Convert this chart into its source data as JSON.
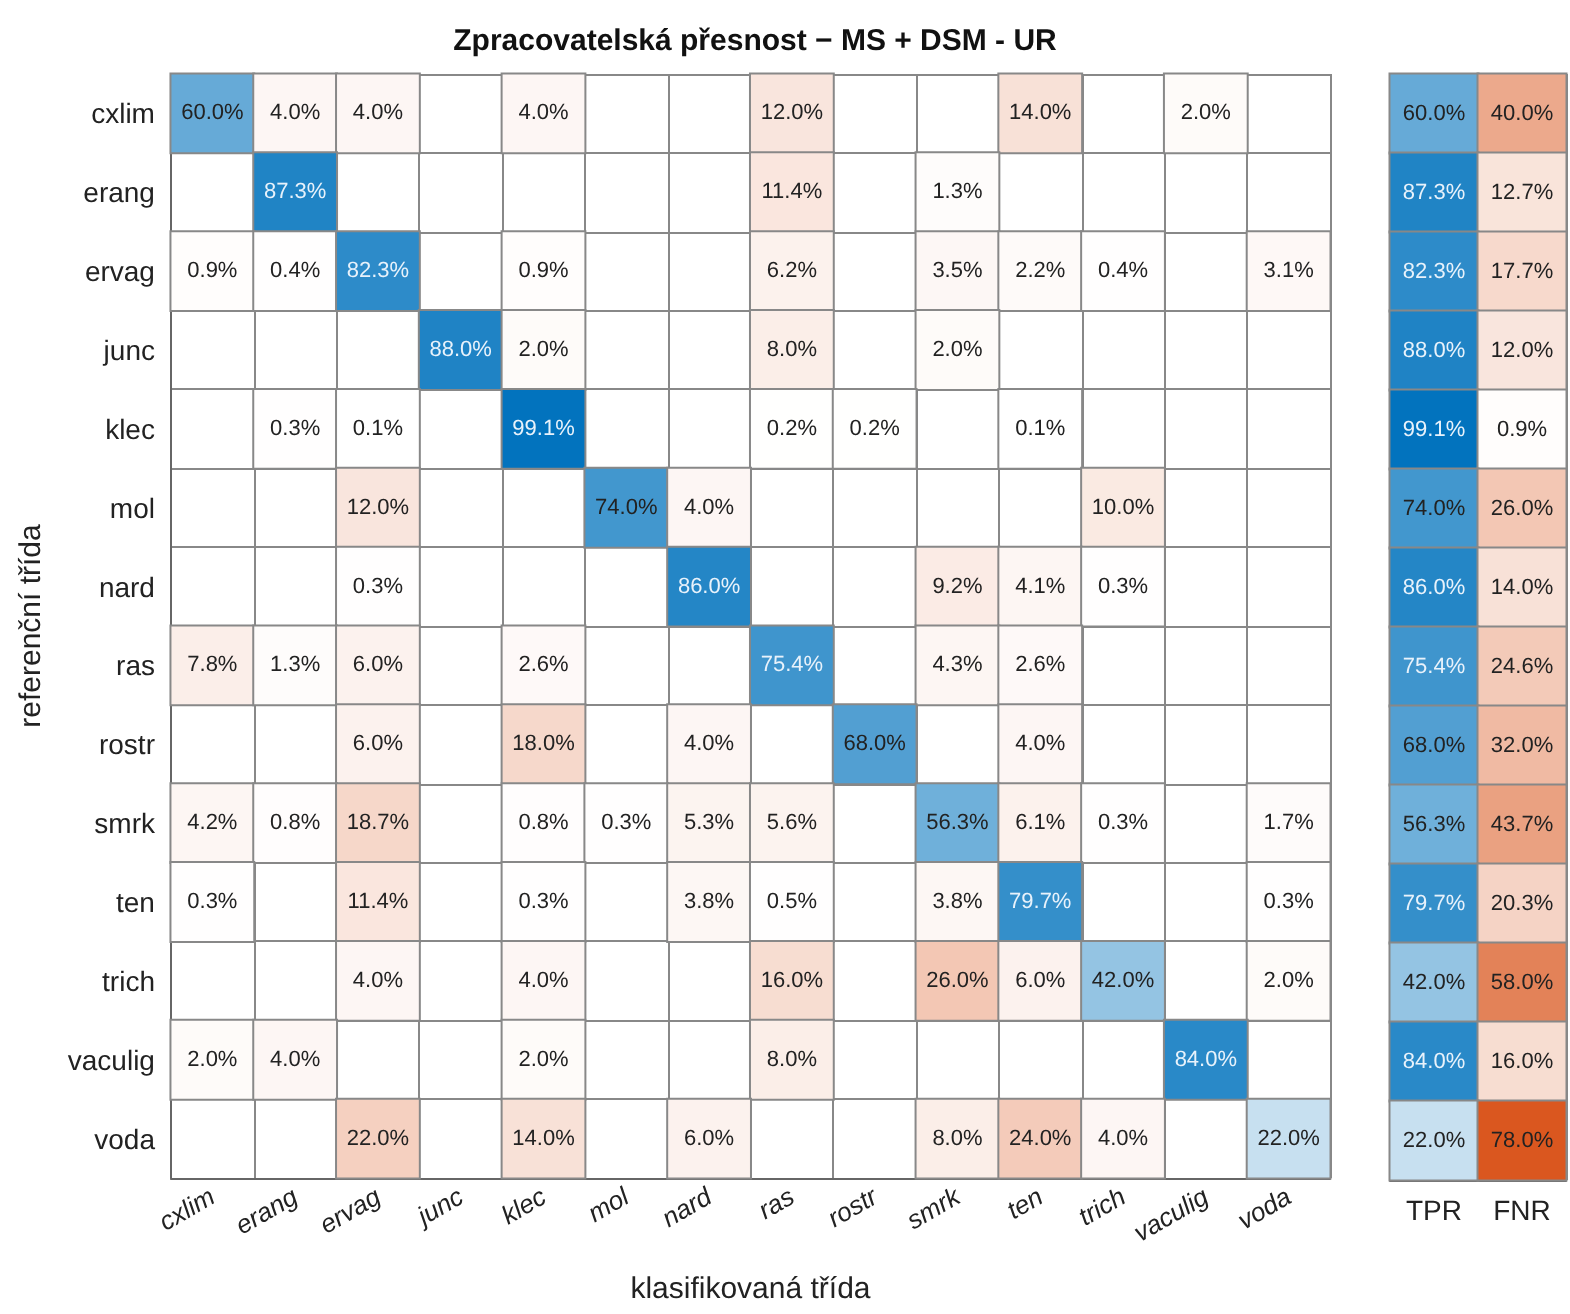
{
  "chart_data": [
    {
      "type": "heatmap",
      "title": "Zpracovatelská přesnost − MS + DSM - UR",
      "xlabel": "klasifikovaná třída",
      "ylabel": "referenční třída",
      "categories": [
        "cxlim",
        "erang",
        "ervag",
        "junc",
        "klec",
        "mol",
        "nard",
        "ras",
        "rostr",
        "smrk",
        "ten",
        "trich",
        "vaculig",
        "voda"
      ],
      "y_categories": [
        "cxlim",
        "erang",
        "ervag",
        "junc",
        "klec",
        "mol",
        "nard",
        "ras",
        "rostr",
        "smrk",
        "ten",
        "trich",
        "vaculig",
        "voda"
      ],
      "cells": [
        [
          60.0,
          4.0,
          4.0,
          null,
          4.0,
          null,
          null,
          12.0,
          null,
          null,
          14.0,
          null,
          2.0,
          null
        ],
        [
          null,
          87.3,
          null,
          null,
          null,
          null,
          null,
          11.4,
          null,
          1.3,
          null,
          null,
          null,
          null
        ],
        [
          0.9,
          0.4,
          82.3,
          null,
          0.9,
          null,
          null,
          6.2,
          null,
          3.5,
          2.2,
          0.4,
          null,
          3.1
        ],
        [
          null,
          null,
          null,
          88.0,
          2.0,
          null,
          null,
          8.0,
          null,
          2.0,
          null,
          null,
          null,
          null
        ],
        [
          null,
          0.3,
          0.1,
          null,
          99.1,
          null,
          null,
          0.2,
          0.2,
          null,
          0.1,
          null,
          null,
          null
        ],
        [
          null,
          null,
          12.0,
          null,
          null,
          74.0,
          4.0,
          null,
          null,
          null,
          null,
          10.0,
          null,
          null
        ],
        [
          null,
          null,
          0.3,
          null,
          null,
          null,
          86.0,
          null,
          null,
          9.2,
          4.1,
          0.3,
          null,
          null
        ],
        [
          7.8,
          1.3,
          6.0,
          null,
          2.6,
          null,
          null,
          75.4,
          null,
          4.3,
          2.6,
          null,
          null,
          null
        ],
        [
          null,
          null,
          6.0,
          null,
          18.0,
          null,
          4.0,
          null,
          68.0,
          null,
          4.0,
          null,
          null,
          null
        ],
        [
          4.2,
          0.8,
          18.7,
          null,
          0.8,
          0.3,
          5.3,
          5.6,
          null,
          56.3,
          6.1,
          0.3,
          null,
          1.7
        ],
        [
          0.3,
          null,
          11.4,
          null,
          0.3,
          null,
          3.8,
          0.5,
          null,
          3.8,
          79.7,
          null,
          null,
          0.3
        ],
        [
          null,
          null,
          4.0,
          null,
          4.0,
          null,
          null,
          16.0,
          null,
          26.0,
          6.0,
          42.0,
          null,
          2.0
        ],
        [
          2.0,
          4.0,
          null,
          null,
          2.0,
          null,
          null,
          8.0,
          null,
          null,
          null,
          null,
          84.0,
          null
        ],
        [
          null,
          null,
          22.0,
          null,
          14.0,
          null,
          6.0,
          null,
          null,
          8.0,
          24.0,
          4.0,
          null,
          22.0
        ]
      ],
      "cell_labels": [
        [
          "60.0%",
          "4.0%",
          "4.0%",
          null,
          "4.0%",
          null,
          null,
          "12.0%",
          null,
          null,
          "14.0%",
          null,
          "2.0%",
          null
        ],
        [
          null,
          "87.3%",
          null,
          null,
          null,
          null,
          null,
          "11.4%",
          null,
          "1.3%",
          null,
          null,
          null,
          null
        ],
        [
          "0.9%",
          "0.4%",
          "82.3%",
          null,
          "0.9%",
          null,
          null,
          "6.2%",
          null,
          "3.5%",
          "2.2%",
          "0.4%",
          null,
          "3.1%"
        ],
        [
          null,
          null,
          null,
          "88.0%",
          "2.0%",
          null,
          null,
          "8.0%",
          null,
          "2.0%",
          null,
          null,
          null,
          null
        ],
        [
          null,
          "0.3%",
          "0.1%",
          null,
          "99.1%",
          null,
          null,
          "0.2%",
          "0.2%",
          null,
          "0.1%",
          null,
          null,
          null
        ],
        [
          null,
          null,
          "12.0%",
          null,
          null,
          "74.0%",
          "4.0%",
          null,
          null,
          null,
          null,
          "10.0%",
          null,
          null
        ],
        [
          null,
          null,
          "0.3%",
          null,
          null,
          null,
          "86.0%",
          null,
          null,
          "9.2%",
          "4.1%",
          "0.3%",
          null,
          null
        ],
        [
          "7.8%",
          "1.3%",
          "6.0%",
          null,
          "2.6%",
          null,
          null,
          "75.4%",
          null,
          "4.3%",
          "2.6%",
          null,
          null,
          null
        ],
        [
          null,
          null,
          "6.0%",
          null,
          "18.0%",
          null,
          "4.0%",
          null,
          "68.0%",
          null,
          "4.0%",
          null,
          null,
          null
        ],
        [
          "4.2%",
          "0.8%",
          "18.7%",
          null,
          "0.8%",
          "0.3%",
          "5.3%",
          "5.6%",
          null,
          "56.3%",
          "6.1%",
          "0.3%",
          null,
          "1.7%"
        ],
        [
          "0.3%",
          null,
          "11.4%",
          null,
          "0.3%",
          null,
          "3.8%",
          "0.5%",
          null,
          "3.8%",
          "79.7%",
          null,
          null,
          "0.3%"
        ],
        [
          null,
          null,
          "4.0%",
          null,
          "4.0%",
          null,
          null,
          "16.0%",
          null,
          "26.0%",
          "6.0%",
          "42.0%",
          null,
          "2.0%"
        ],
        [
          "2.0%",
          "4.0%",
          null,
          null,
          "2.0%",
          null,
          null,
          "8.0%",
          null,
          null,
          null,
          null,
          "84.0%",
          null
        ],
        [
          null,
          null,
          "22.0%",
          null,
          "14.0%",
          null,
          "6.0%",
          null,
          null,
          "8.0%",
          "24.0%",
          "4.0%",
          null,
          "22.0%"
        ]
      ]
    },
    {
      "type": "heatmap",
      "categories": [
        "TPR",
        "FNR"
      ],
      "tick_labels": "x",
      "y_categories": [
        null,
        null,
        null,
        null,
        null,
        null,
        null,
        null,
        null,
        null,
        null,
        null,
        null,
        null
      ],
      "cells": [
        [
          60.0,
          40.0
        ],
        [
          87.3,
          12.7
        ],
        [
          82.3,
          17.7
        ],
        [
          88.0,
          12.0
        ],
        [
          99.1,
          0.9
        ],
        [
          74.0,
          26.0
        ],
        [
          86.0,
          14.0
        ],
        [
          75.4,
          24.6
        ],
        [
          68.0,
          32.0
        ],
        [
          56.3,
          43.7
        ],
        [
          79.7,
          20.3
        ],
        [
          42.0,
          58.0
        ],
        [
          84.0,
          16.0
        ],
        [
          22.0,
          78.0
        ]
      ],
      "cell_labels": [
        [
          "60.0%",
          "40.0%"
        ],
        [
          "87.3%",
          "12.7%"
        ],
        [
          "82.3%",
          "17.7%"
        ],
        [
          "88.0%",
          "12.0%"
        ],
        [
          "99.1%",
          "0.9%"
        ],
        [
          "74.0%",
          "26.0%"
        ],
        [
          "86.0%",
          "14.0%"
        ],
        [
          "75.4%",
          "24.6%"
        ],
        [
          "68.0%",
          "32.0%"
        ],
        [
          "56.3%",
          "43.7%"
        ],
        [
          "79.7%",
          "20.3%"
        ],
        [
          "42.0%",
          "58.0%"
        ],
        [
          "84.0%",
          "16.0%"
        ],
        [
          "22.0%",
          "78.0%"
        ]
      ]
    }
  ]
}
